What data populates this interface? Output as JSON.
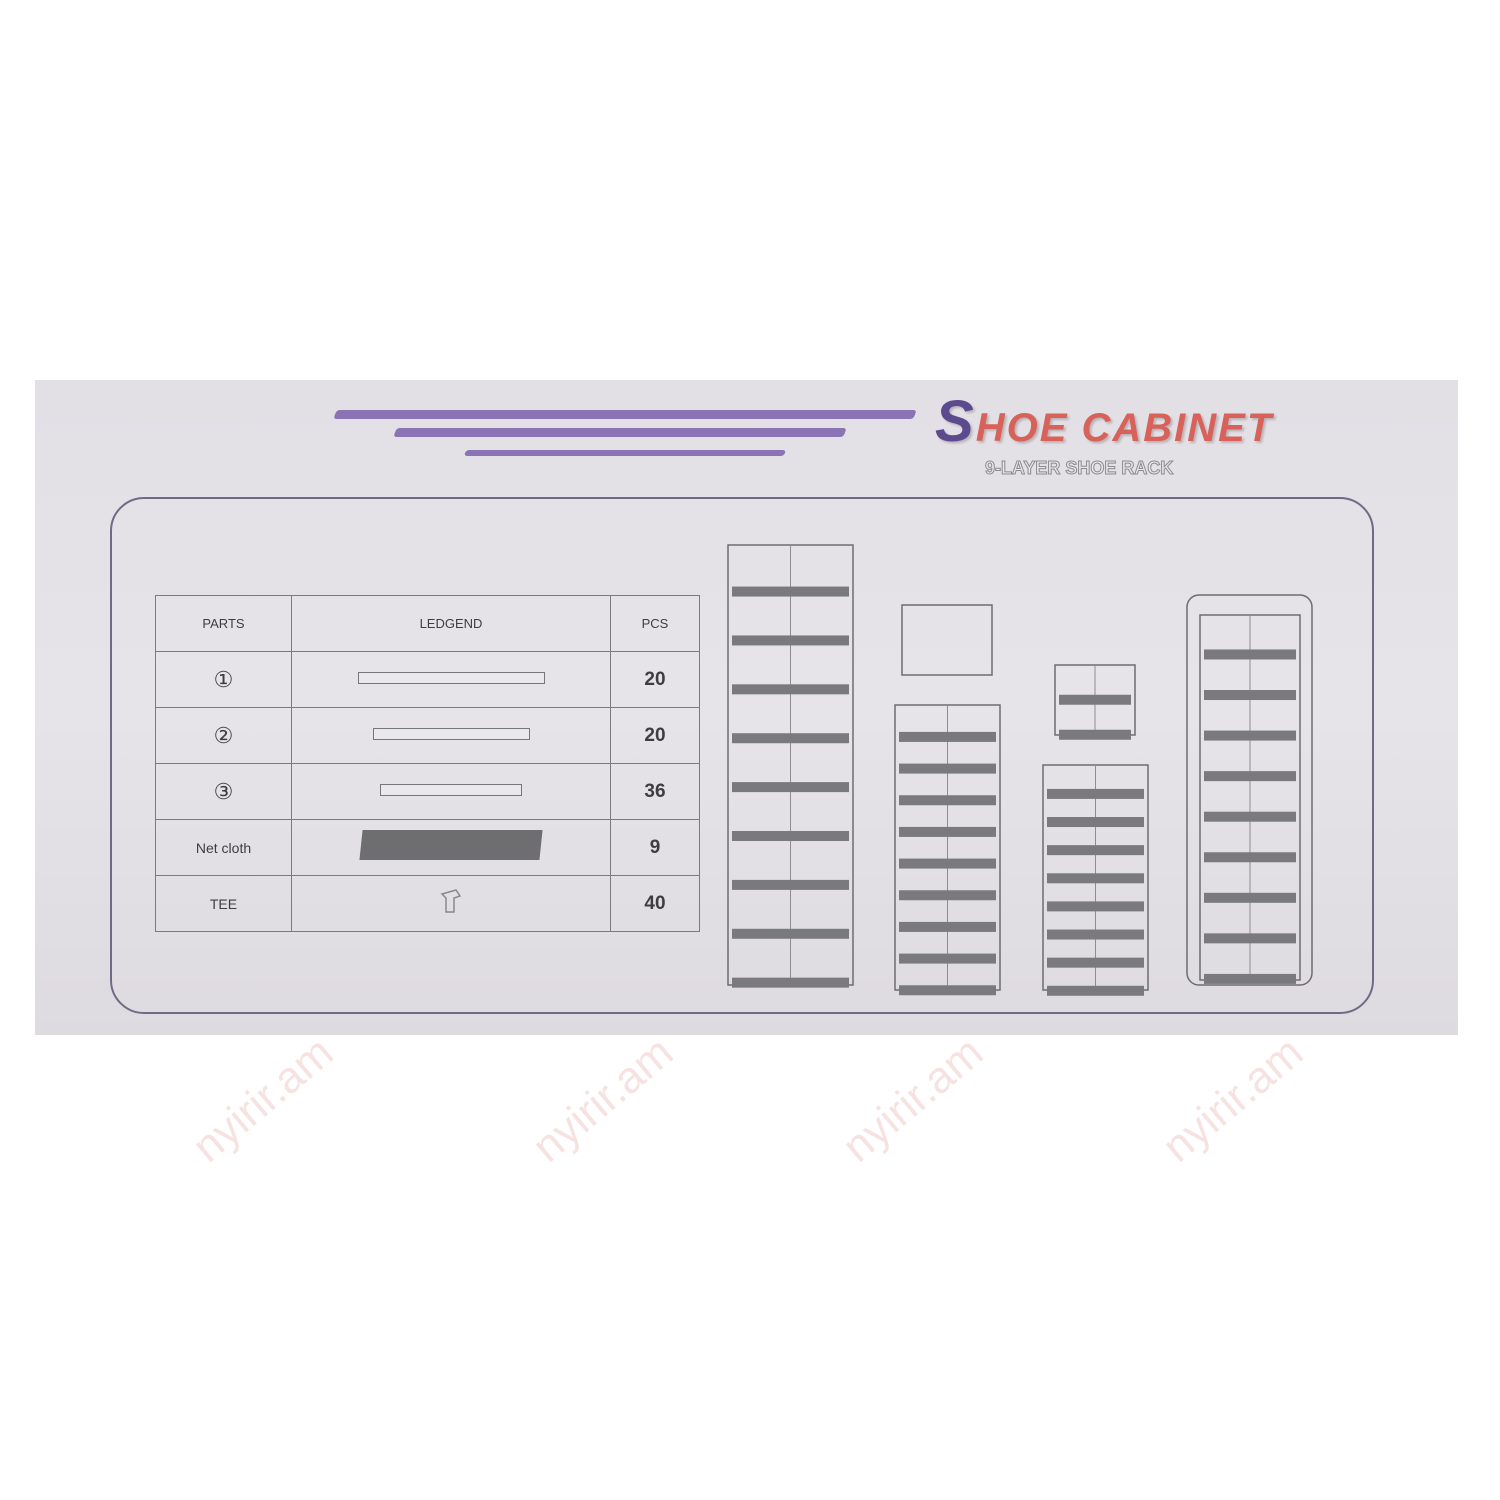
{
  "header": {
    "title_initial": "S",
    "title_rest": "HOE CABINET",
    "subtitle": "9-LAYER SHOE RACK"
  },
  "parts_table": {
    "columns": [
      "PARTS",
      "LEDGEND",
      "PCS"
    ],
    "rows": [
      {
        "part": "①",
        "legend": "long-tube",
        "pcs": "20"
      },
      {
        "part": "②",
        "legend": "medium-tube",
        "pcs": "20"
      },
      {
        "part": "③",
        "legend": "short-tube",
        "pcs": "36"
      },
      {
        "part": "Net cloth",
        "legend": "net-cloth-panel",
        "pcs": "9"
      },
      {
        "part": "TEE",
        "legend": "tee-connector",
        "pcs": "40"
      }
    ]
  },
  "colors": {
    "accent_purple": "#8a74b4",
    "title_red": "#d8625a",
    "box_bg": "#e4e2e6"
  },
  "watermark": "nyirir.am"
}
